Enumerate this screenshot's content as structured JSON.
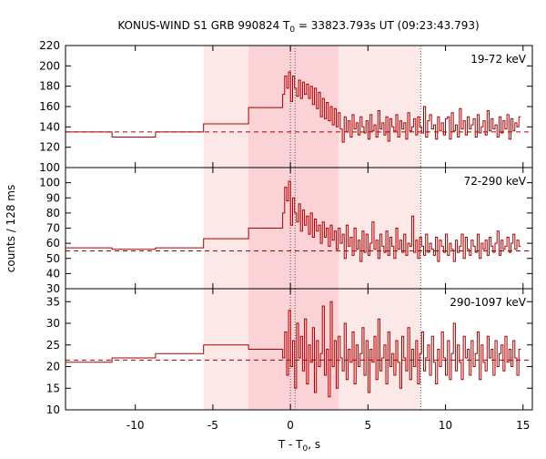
{
  "chart_data": {
    "type": "line",
    "title_prefix": "KONUS-WIND S1 GRB 990824 T",
    "title_sub": "0",
    "title_suffix": " = 33823.793s UT (09:23:43.793)",
    "xlabel_prefix": "T - T",
    "xlabel_sub": "0",
    "xlabel_suffix": ", s",
    "ylabel": "counts / 128 ms",
    "xlim": [
      -14.5,
      15.6
    ],
    "xticks": [
      -10,
      -5,
      0,
      5,
      10,
      15
    ],
    "shaded_regions": [
      {
        "from": -5.6,
        "to": 8.4,
        "color": "#fde8e8"
      },
      {
        "from": -2.7,
        "to": 3.1,
        "color": "#fbd2d5"
      }
    ],
    "vertical_markers": [
      0,
      0.3,
      8.4
    ],
    "line_color": "#aa0000",
    "panels": [
      {
        "band": "19-72 keV",
        "ylim": [
          100,
          220
        ],
        "yticks": [
          100,
          120,
          140,
          160,
          180,
          200,
          220
        ],
        "background": 135,
        "coarse_steps": [
          {
            "x0": -14.5,
            "x1": -11.5,
            "y": 135
          },
          {
            "x0": -11.5,
            "x1": -8.7,
            "y": 130
          },
          {
            "x0": -8.7,
            "x1": -5.6,
            "y": 135
          },
          {
            "x0": -5.6,
            "x1": -2.7,
            "y": 143
          },
          {
            "x0": -2.7,
            "x1": -0.5,
            "y": 159
          }
        ],
        "fine_start": -0.5,
        "fine_values": [
          172,
          190,
          178,
          194,
          165,
          190,
          178,
          170,
          186,
          168,
          184,
          172,
          182,
          168,
          180,
          162,
          178,
          158,
          174,
          150,
          168,
          148,
          164,
          146,
          160,
          142,
          158,
          140,
          154,
          138,
          125,
          150,
          135,
          146,
          130,
          152,
          138,
          144,
          132,
          150,
          140,
          134,
          146,
          128,
          152,
          136,
          142,
          130,
          156,
          138,
          144,
          132,
          150,
          126,
          148,
          140,
          136,
          152,
          130,
          146,
          138,
          144,
          128,
          154,
          136,
          140,
          148,
          132,
          150,
          140,
          134,
          160,
          130,
          146,
          152,
          138,
          142,
          128,
          150,
          136,
          144,
          132,
          148,
          150,
          128,
          154,
          136,
          142,
          130,
          158,
          138,
          146,
          132,
          150,
          138,
          142,
          148,
          130,
          152,
          134,
          140,
          146,
          132,
          156,
          136,
          148,
          138,
          142,
          130,
          150,
          134,
          146,
          138,
          152,
          128,
          148,
          136,
          144,
          140,
          150
        ]
      },
      {
        "band": "72-290 keV",
        "ylim": [
          30,
          110
        ],
        "yticks": [
          30,
          40,
          50,
          60,
          70,
          80,
          90,
          100
        ],
        "background": 55,
        "coarse_steps": [
          {
            "x0": -14.5,
            "x1": -11.5,
            "y": 57
          },
          {
            "x0": -11.5,
            "x1": -8.7,
            "y": 56
          },
          {
            "x0": -8.7,
            "x1": -5.6,
            "y": 57
          },
          {
            "x0": -5.6,
            "x1": -2.7,
            "y": 63
          },
          {
            "x0": -2.7,
            "x1": -0.5,
            "y": 70
          }
        ],
        "fine_start": -0.5,
        "fine_values": [
          80,
          97,
          88,
          101,
          72,
          90,
          80,
          74,
          86,
          68,
          82,
          72,
          78,
          66,
          80,
          64,
          76,
          68,
          72,
          60,
          74,
          64,
          70,
          58,
          72,
          62,
          68,
          56,
          70,
          60,
          66,
          50,
          72,
          58,
          64,
          52,
          70,
          56,
          62,
          48,
          68,
          54,
          66,
          52,
          60,
          74,
          56,
          62,
          50,
          66,
          58,
          54,
          68,
          52,
          64,
          58,
          50,
          70,
          56,
          62,
          54,
          66,
          52,
          60,
          58,
          78,
          54,
          62,
          50,
          64,
          58,
          52,
          66,
          54,
          60,
          56,
          52,
          64,
          48,
          62,
          58,
          54,
          66,
          52,
          60,
          56,
          48,
          62,
          54,
          58,
          66,
          50,
          64,
          56,
          52,
          62,
          58,
          54,
          66,
          50,
          60,
          56,
          62,
          52,
          64,
          58,
          54,
          60,
          68,
          52,
          62,
          56,
          58,
          64,
          54,
          60,
          66,
          56,
          62,
          58
        ]
      },
      {
        "band": "290-1097 keV",
        "ylim": [
          10,
          38
        ],
        "yticks": [
          10,
          15,
          20,
          25,
          30,
          35
        ],
        "background": 21.5,
        "coarse_steps": [
          {
            "x0": -14.5,
            "x1": -11.5,
            "y": 21
          },
          {
            "x0": -11.5,
            "x1": -8.7,
            "y": 22
          },
          {
            "x0": -8.7,
            "x1": -5.6,
            "y": 23
          },
          {
            "x0": -5.6,
            "x1": -2.7,
            "y": 25
          },
          {
            "x0": -2.7,
            "x1": -0.5,
            "y": 24
          }
        ],
        "fine_start": -0.5,
        "fine_values": [
          22,
          28,
          18,
          33,
          20,
          26,
          15,
          30,
          22,
          27,
          19,
          31,
          16,
          25,
          21,
          29,
          14,
          26,
          20,
          23,
          34,
          18,
          24,
          13,
          35,
          20,
          26,
          15,
          27,
          22,
          19,
          30,
          17,
          24,
          21,
          28,
          16,
          25,
          20,
          23,
          29,
          18,
          26,
          14,
          24,
          21,
          27,
          17,
          31,
          19,
          22,
          25,
          16,
          28,
          20,
          23,
          18,
          26,
          21,
          15,
          27,
          22,
          19,
          29,
          17,
          24,
          20,
          26,
          16,
          23,
          28,
          19,
          22,
          25,
          18,
          27,
          21,
          16,
          24,
          20,
          28,
          22,
          18,
          26,
          17,
          23,
          30,
          19,
          25,
          21,
          17,
          27,
          22,
          24,
          18,
          26,
          20,
          23,
          28,
          17,
          25,
          21,
          19,
          27,
          22,
          24,
          18,
          26,
          20,
          23,
          25,
          19,
          27,
          21,
          24,
          20,
          26,
          22,
          18,
          24
        ]
      }
    ]
  }
}
